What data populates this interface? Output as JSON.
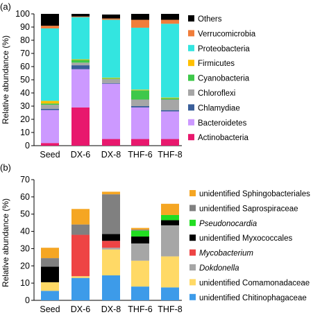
{
  "chart_data": [
    {
      "panel": "(a)",
      "type": "bar",
      "stacked": true,
      "categories": [
        "Seed",
        "DX-6",
        "DX-8",
        "THF-6",
        "THF-8"
      ],
      "ylabel": "Relative abundance (%)",
      "ylim": [
        0,
        100
      ],
      "yticks": [
        0,
        10,
        20,
        30,
        40,
        50,
        60,
        70,
        80,
        90,
        100
      ],
      "grid": false,
      "legend_position": "right",
      "series": [
        {
          "name": "Actinobacteria",
          "color": "#e8186d",
          "values": [
            2,
            29,
            5,
            5,
            5
          ]
        },
        {
          "name": "Bacteroidetes",
          "color": "#cc99ff",
          "values": [
            25,
            29,
            42,
            24,
            21
          ]
        },
        {
          "name": "Chlamydiae",
          "color": "#3a5f9a",
          "values": [
            1,
            3,
            0.5,
            1,
            1
          ]
        },
        {
          "name": "Chloroflexi",
          "color": "#a6a6a6",
          "values": [
            3,
            2,
            3,
            5,
            8
          ]
        },
        {
          "name": "Cyanobacteria",
          "color": "#3ec84a",
          "values": [
            1,
            2,
            0.5,
            7,
            1
          ]
        },
        {
          "name": "Firmicutes",
          "color": "#ffc000",
          "values": [
            2,
            0.5,
            0.5,
            0.5,
            0.5
          ]
        },
        {
          "name": "Proteobacteria",
          "color": "#33e5e0",
          "values": [
            55,
            32,
            44,
            47,
            56
          ]
        },
        {
          "name": "Verrucomicrobia",
          "color": "#f07d3a",
          "values": [
            2,
            0.5,
            1,
            6,
            3
          ]
        },
        {
          "name": "Others",
          "color": "#000000",
          "values": [
            9,
            2,
            3,
            4.5,
            4.5
          ]
        }
      ]
    },
    {
      "panel": "(b)",
      "type": "bar",
      "stacked": true,
      "categories": [
        "Seed",
        "DX-6",
        "DX-8",
        "THF-6",
        "THF-8"
      ],
      "ylabel": "Relative abundance (%)",
      "ylim": [
        0,
        70
      ],
      "yticks": [
        0,
        10,
        20,
        30,
        40,
        50,
        60,
        70
      ],
      "grid": false,
      "legend_position": "right",
      "series": [
        {
          "name": "unidentified Chitinophagaceae",
          "italic": false,
          "color": "#3d9be9",
          "values": [
            5.5,
            13,
            14.5,
            8,
            7.5
          ]
        },
        {
          "name": "unidentified Comamonadaceae",
          "italic": false,
          "color": "#ffd966",
          "values": [
            5,
            1,
            15,
            15,
            18
          ]
        },
        {
          "name": "Dokdonella",
          "italic": true,
          "color": "#a6a6a6",
          "values": [
            0,
            0,
            1,
            10,
            0
          ]
        },
        {
          "name": "Mycobacterium",
          "italic": true,
          "color": "#ee4444",
          "values": [
            0,
            24,
            4,
            0,
            0
          ]
        },
        {
          "name": "unidentified Myxococcales",
          "italic": false,
          "color": "#000000",
          "values": [
            9,
            0,
            4,
            4,
            0
          ]
        },
        {
          "name": "Pseudonocardia",
          "italic": true,
          "color": "#22dd22",
          "values": [
            0,
            0,
            0,
            3.5,
            0
          ]
        },
        {
          "name": "unidentified Saprospiraceae",
          "italic": false,
          "color": "#808080",
          "values": [
            5,
            6,
            23,
            0.5,
            0
          ]
        },
        {
          "name": "unidentified Sphingobacteriales",
          "italic": false,
          "color": "#f5a623",
          "values": [
            6,
            9,
            1.5,
            1,
            0
          ]
        }
      ],
      "stack_overrides": {
        "THF-8": [
          {
            "series": "unidentified Chitinophagaceae",
            "value": 7.5
          },
          {
            "series": "unidentified Comamonadaceae",
            "value": 18
          },
          {
            "series": "Dokdonella",
            "value": 18
          },
          {
            "series": "unidentified Myxococcales",
            "value": 3
          },
          {
            "series": "Pseudonocardia",
            "value": 3
          },
          {
            "series": "unidentified Sphingobacteriales",
            "value": 6.5
          }
        ]
      }
    }
  ]
}
